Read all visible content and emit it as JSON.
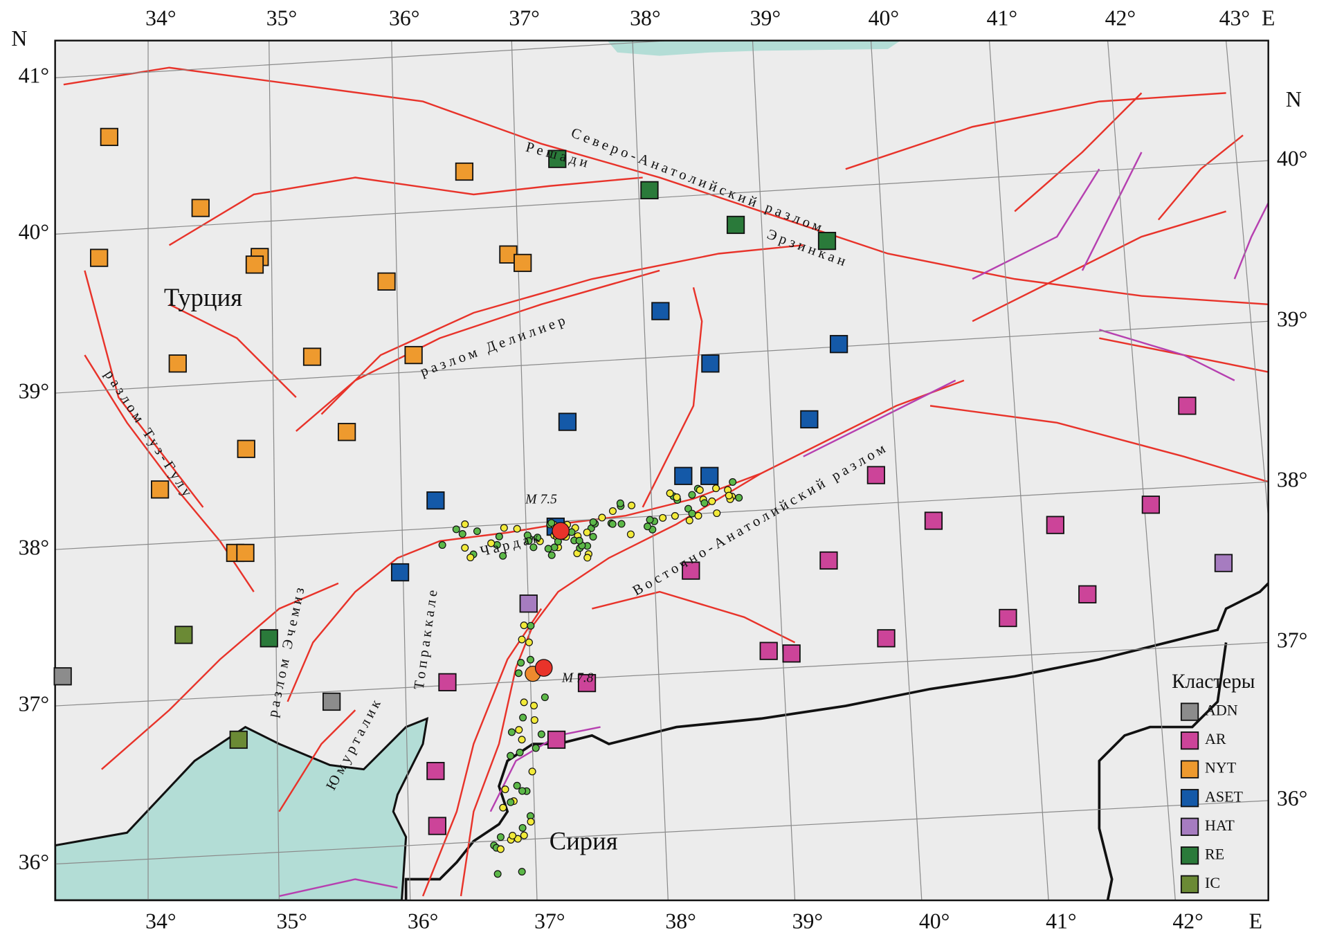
{
  "map": {
    "top_labels": [
      "34°",
      "35°",
      "36°",
      "37°",
      "38°",
      "39°",
      "40°",
      "41°",
      "42°",
      "43°",
      "E"
    ],
    "bottom_labels": [
      "34°",
      "35°",
      "36°",
      "37°",
      "38°",
      "39°",
      "40°",
      "41°",
      "42°",
      "E"
    ],
    "left_labels": [
      "N",
      "41°",
      "40°",
      "39°",
      "38°",
      "37°",
      "36°"
    ],
    "right_labels": [
      "N",
      "40°",
      "39°",
      "38°",
      "37°",
      "36°"
    ],
    "places": [
      "Турция",
      "Сирия",
      "Северо-Анатолийский разлом",
      "Решади",
      "Эрзинкан",
      "разлом Делилиер",
      "разлом Туз-Гулу",
      "разлом Эчемиз",
      "Топраккале",
      "Юмурталик",
      "Чардак",
      "Восточно-Анатолийский разлом",
      "M 7.5",
      "M 7.8"
    ],
    "legend": {
      "title": "Кластеры",
      "items": [
        {
          "label": "ADN",
          "color": "#8c8c8c"
        },
        {
          "label": "AR",
          "color": "#cc4499"
        },
        {
          "label": "NYT",
          "color": "#ee9a2e"
        },
        {
          "label": "ASET",
          "color": "#1459a8"
        },
        {
          "label": "HAT",
          "color": "#a67cc0"
        },
        {
          "label": "RE",
          "color": "#2a7a3a"
        },
        {
          "label": "IC",
          "color": "#6b8a35"
        }
      ]
    }
  }
}
